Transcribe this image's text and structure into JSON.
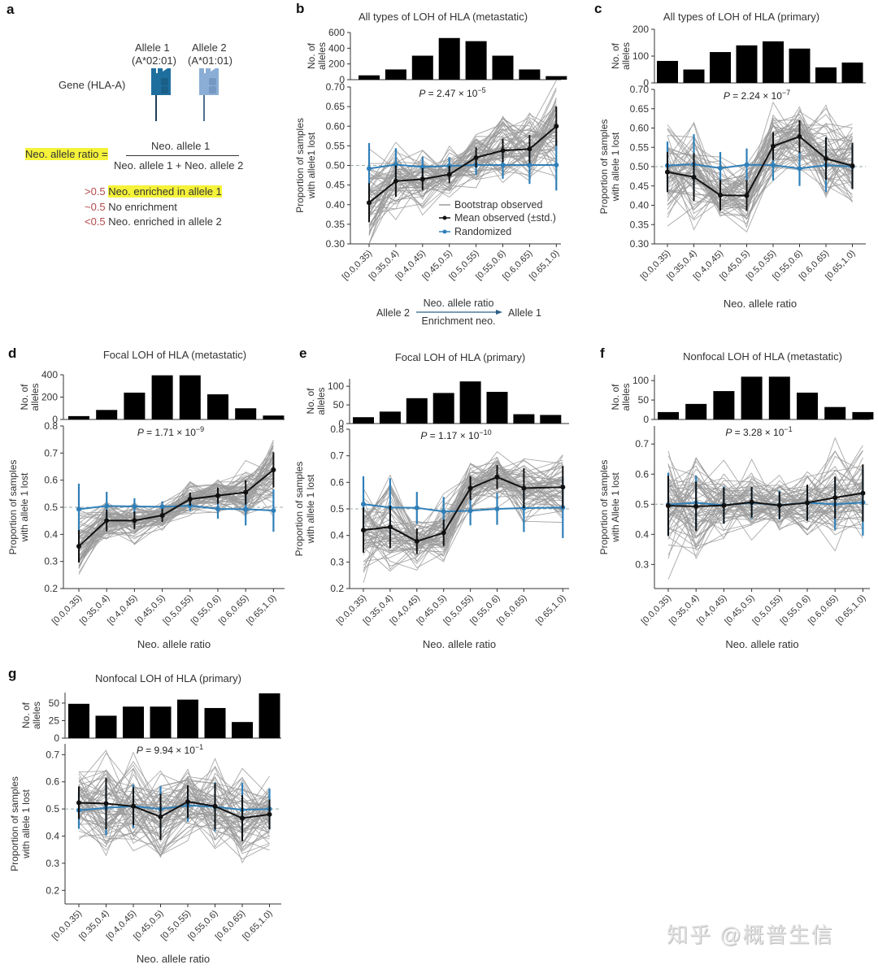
{
  "panel_a": {
    "letter": "a",
    "allele1_name": "Allele 1",
    "allele1_type": "(A*02:01)",
    "allele2_name": "Allele 2",
    "allele2_type": "(A*01:01)",
    "gene_label": "Gene (HLA-A)",
    "ratio_label": "Neo. allele ratio =",
    "numerator": "Neo. allele 1",
    "denominator": "Neo. allele 1 + Neo. allele 2",
    "legend": [
      {
        "threshold": ">0.5",
        "text": "Neo. enriched in allele 1",
        "highlight": true
      },
      {
        "threshold": "~0.5",
        "text": "No enrichment",
        "highlight": false
      },
      {
        "threshold": "<0.5",
        "text": "Neo. enriched in allele 2",
        "highlight": false
      }
    ],
    "colors": {
      "allele1": "#1f6f9e",
      "allele2": "#8aaed6",
      "highlight": "#f5f23a",
      "threshold_red": "#b5494b"
    }
  },
  "enrichment_arrow": {
    "left": "Allele 2",
    "top": "Neo. allele ratio",
    "bottom": "Enrichment neo.",
    "right": "Allele 1"
  },
  "legend_b": {
    "bootstrap": "Bootstrap observed",
    "mean": "Mean observed (±std.)",
    "randomized": "Randomized"
  },
  "watermark": "知乎 @概普生信",
  "chart_data": [
    {
      "id": "b",
      "letter": "b",
      "type": "bar+line",
      "title": "All types of LOH of HLA (metastatic)",
      "categories": [
        "[0.0,0.35)",
        "[0.35,0.4)",
        "[0.4,0.45)",
        "[0.45,0.5)",
        "[0.5,0.55)",
        "[0.55,0.6)",
        "[0.6,0.65)",
        "[0.65,1.0)"
      ],
      "bar_ylabel": "No. of alleles",
      "bar_ylim": [
        0,
        600
      ],
      "bar_yticks": [
        0,
        200,
        400,
        600
      ],
      "bar_values": [
        55,
        130,
        305,
        530,
        490,
        305,
        130,
        45
      ],
      "ylabel": "Proportion of samples with allele1 lost",
      "ylim": [
        0.3,
        0.7
      ],
      "yticks": [
        "0.30",
        "0.35",
        "0.40",
        "0.45",
        "0.50",
        "0.55",
        "0.60",
        "0.65",
        "0.70"
      ],
      "xlabel": "",
      "p_mantissa": "2.47",
      "p_exp": "−5",
      "mean": [
        0.405,
        0.46,
        0.465,
        0.477,
        0.52,
        0.538,
        0.542,
        0.6
      ],
      "mean_std": [
        0.05,
        0.04,
        0.028,
        0.022,
        0.026,
        0.03,
        0.036,
        0.05
      ],
      "random": [
        0.492,
        0.502,
        0.496,
        0.499,
        0.501,
        0.501,
        0.501,
        0.501
      ],
      "random_std": [
        0.065,
        0.042,
        0.026,
        0.022,
        0.025,
        0.035,
        0.048,
        0.065
      ],
      "bootstrap_spread": [
        0.06,
        0.04,
        0.035,
        0.028,
        0.035,
        0.038,
        0.045,
        0.055
      ],
      "reference_line": 0.5,
      "legend": "bottom-right"
    },
    {
      "id": "c",
      "letter": "c",
      "type": "bar+line",
      "title": "All types of LOH of HLA (primary)",
      "categories": [
        "[0.0,0.35)",
        "[0.35,0.4)",
        "[0.4,0.45)",
        "[0.45,0.5)",
        "[0.5,0.55)",
        "[0.55,0.6)",
        "[0.6,0.65)",
        "[0.65,1.0)"
      ],
      "bar_ylabel": "No. of alleles",
      "bar_ylim": [
        0,
        200
      ],
      "bar_yticks": [
        0,
        100,
        200
      ],
      "bar_values": [
        82,
        50,
        115,
        140,
        155,
        128,
        58,
        76
      ],
      "ylabel": "Proportion of samples with allele 1 lost",
      "ylim": [
        0.3,
        0.7
      ],
      "yticks": [
        "0.30",
        "0.35",
        "0.40",
        "0.45",
        "0.50",
        "0.55",
        "0.60",
        "0.65",
        "0.70"
      ],
      "xlabel": "Neo. allele ratio",
      "p_mantissa": "2.24",
      "p_exp": "−7",
      "mean": [
        0.486,
        0.473,
        0.426,
        0.425,
        0.553,
        0.578,
        0.521,
        0.502
      ],
      "mean_std": [
        0.052,
        0.062,
        0.04,
        0.04,
        0.036,
        0.042,
        0.055,
        0.06
      ],
      "random": [
        0.503,
        0.506,
        0.496,
        0.505,
        0.504,
        0.495,
        0.504,
        0.5
      ],
      "random_std": [
        0.062,
        0.078,
        0.042,
        0.042,
        0.04,
        0.045,
        0.07,
        0.058
      ],
      "bootstrap_spread": [
        0.06,
        0.065,
        0.04,
        0.04,
        0.045,
        0.045,
        0.06,
        0.055
      ],
      "reference_line": 0.5
    },
    {
      "id": "d",
      "letter": "d",
      "type": "bar+line",
      "title": "Focal LOH of HLA (metastatic)",
      "categories": [
        "[0.0,0.35)",
        "[0.35,0.4)",
        "[0.4,0.45)",
        "[0.45,0.5)",
        "[0.5,0.55)",
        "[0.55,0.6)",
        "[0.6,0.65)",
        "[0.65,1.0)"
      ],
      "bar_ylabel": "No. of alleles",
      "bar_ylim": [
        0,
        400
      ],
      "bar_yticks": [
        0,
        200,
        400
      ],
      "bar_values": [
        30,
        85,
        240,
        395,
        395,
        225,
        100,
        35
      ],
      "ylabel": "Proportion of samples with allele 1 lost",
      "ylim": [
        0.2,
        0.8
      ],
      "yticks": [
        "0.2",
        "0.3",
        "0.4",
        "0.5",
        "0.6",
        "0.7",
        "0.8"
      ],
      "xlabel": "Neo. allele ratio",
      "p_mantissa": "1.71",
      "p_exp": "−9",
      "mean": [
        0.356,
        0.451,
        0.451,
        0.47,
        0.53,
        0.543,
        0.555,
        0.638
      ],
      "mean_std": [
        0.06,
        0.04,
        0.033,
        0.025,
        0.024,
        0.03,
        0.045,
        0.065
      ],
      "random": [
        0.493,
        0.505,
        0.503,
        0.502,
        0.506,
        0.494,
        0.493,
        0.488
      ],
      "random_std": [
        0.094,
        0.052,
        0.03,
        0.02,
        0.02,
        0.036,
        0.06,
        0.078
      ],
      "bootstrap_spread": [
        0.06,
        0.04,
        0.035,
        0.025,
        0.03,
        0.035,
        0.045,
        0.065
      ],
      "reference_line": 0.5
    },
    {
      "id": "e",
      "letter": "e",
      "type": "bar+line",
      "title": "Focal LOH of HLA (primary)",
      "categories": [
        "[0.0,0.35)",
        "[0.35,0.4)",
        "[0.4,0.45)",
        "[0.45,0.5)",
        "[0.5,0.55)",
        "[0.55,0.6)",
        "[0.6,0.65)",
        "[0.65,1.0)"
      ],
      "bar_ylabel": "No. of alleles",
      "bar_ylim": [
        0,
        120
      ],
      "bar_yticks": [
        0,
        50,
        100
      ],
      "bar_values": [
        17,
        32,
        68,
        82,
        113,
        85,
        25,
        23
      ],
      "ylabel": "Proportion of samples with allele 1 lost",
      "ylim": [
        0.2,
        0.8
      ],
      "yticks": [
        "0.2",
        "0.3",
        "0.4",
        "0.5",
        "0.6",
        "0.7",
        "0.8"
      ],
      "xlabel": "Neo. allele ratio",
      "p_mantissa": "1.17",
      "p_exp": "−10",
      "mean": [
        0.42,
        0.432,
        0.378,
        0.41,
        0.578,
        0.62,
        0.578,
        0.582
      ],
      "mean_std": [
        0.085,
        0.08,
        0.048,
        0.05,
        0.045,
        0.045,
        0.075,
        0.08
      ],
      "random": [
        0.518,
        0.505,
        0.504,
        0.49,
        0.493,
        0.5,
        0.503,
        0.505
      ],
      "random_std": [
        0.105,
        0.11,
        0.06,
        0.055,
        0.055,
        0.06,
        0.09,
        0.115
      ],
      "bootstrap_spread": [
        0.08,
        0.08,
        0.045,
        0.05,
        0.045,
        0.045,
        0.06,
        0.07
      ],
      "reference_line": 0.5
    },
    {
      "id": "f",
      "letter": "f",
      "type": "bar+line",
      "title": "Nonfocal LOH of HLA (metastatic)",
      "categories": [
        "[0.0,0.35)",
        "[0.35,0.4)",
        "[0.4,0.45)",
        "[0.45,0.5)",
        "[0.5,0.55)",
        "[0.55,0.6)",
        "[0.6,0.65)",
        "[0.65,1.0)"
      ],
      "bar_ylabel": "No. of alleles",
      "bar_ylim": [
        0,
        115
      ],
      "bar_yticks": [
        0,
        50,
        100
      ],
      "bar_values": [
        19,
        40,
        73,
        110,
        110,
        69,
        32,
        19
      ],
      "ylabel": "Proportion of samples with Allele 1 lost",
      "ylim": [
        0.22,
        0.76
      ],
      "yticks": [
        "0.3",
        "0.4",
        "0.5",
        "0.6",
        "0.7"
      ],
      "xlabel": "Neo. allele ratio",
      "p_mantissa": "3.28",
      "p_exp": "−1",
      "mean": [
        0.495,
        0.493,
        0.496,
        0.507,
        0.496,
        0.505,
        0.522,
        0.537
      ],
      "mean_std": [
        0.1,
        0.082,
        0.06,
        0.05,
        0.045,
        0.06,
        0.07,
        0.095
      ],
      "random": [
        0.499,
        0.505,
        0.497,
        0.505,
        0.497,
        0.505,
        0.5,
        0.506
      ],
      "random_std": [
        0.105,
        0.09,
        0.062,
        0.052,
        0.048,
        0.058,
        0.085,
        0.11
      ],
      "bootstrap_spread": [
        0.09,
        0.08,
        0.055,
        0.05,
        0.045,
        0.055,
        0.07,
        0.09
      ],
      "reference_line": 0.5
    },
    {
      "id": "g",
      "letter": "g",
      "type": "bar+line",
      "title": "Nonfocal LOH of HLA (primary)",
      "categories": [
        "[0.0,0.35)",
        "[0.35,0.4)",
        "[0.4,0.45)",
        "[0.45,0.5)",
        "[0.5,0.55)",
        "[0.55,0.6)",
        "[0.6,0.65)",
        "[0.65,1.0)"
      ],
      "bar_ylabel": "No. of alleles",
      "bar_ylim": [
        0,
        65
      ],
      "bar_yticks": [
        0,
        25,
        50
      ],
      "bar_values": [
        49,
        32,
        45,
        45,
        55,
        43,
        23,
        64
      ],
      "ylabel": "Proportion of samples with allele 1 lost",
      "ylim": [
        0.15,
        0.74
      ],
      "yticks": [
        "0.2",
        "0.3",
        "0.4",
        "0.5",
        "0.6",
        "0.7"
      ],
      "xlabel": "Neo. allele ratio",
      "p_mantissa": "9.94",
      "p_exp": "−1",
      "mean": [
        0.523,
        0.52,
        0.51,
        0.471,
        0.527,
        0.51,
        0.466,
        0.48
      ],
      "mean_std": [
        0.06,
        0.095,
        0.07,
        0.085,
        0.06,
        0.085,
        0.085,
        0.055
      ],
      "random": [
        0.495,
        0.504,
        0.51,
        0.5,
        0.513,
        0.508,
        0.497,
        0.5
      ],
      "random_std": [
        0.068,
        0.1,
        0.08,
        0.085,
        0.06,
        0.09,
        0.1,
        0.075
      ],
      "bootstrap_spread": [
        0.07,
        0.09,
        0.075,
        0.085,
        0.07,
        0.085,
        0.09,
        0.06
      ],
      "reference_line": 0.5
    }
  ]
}
